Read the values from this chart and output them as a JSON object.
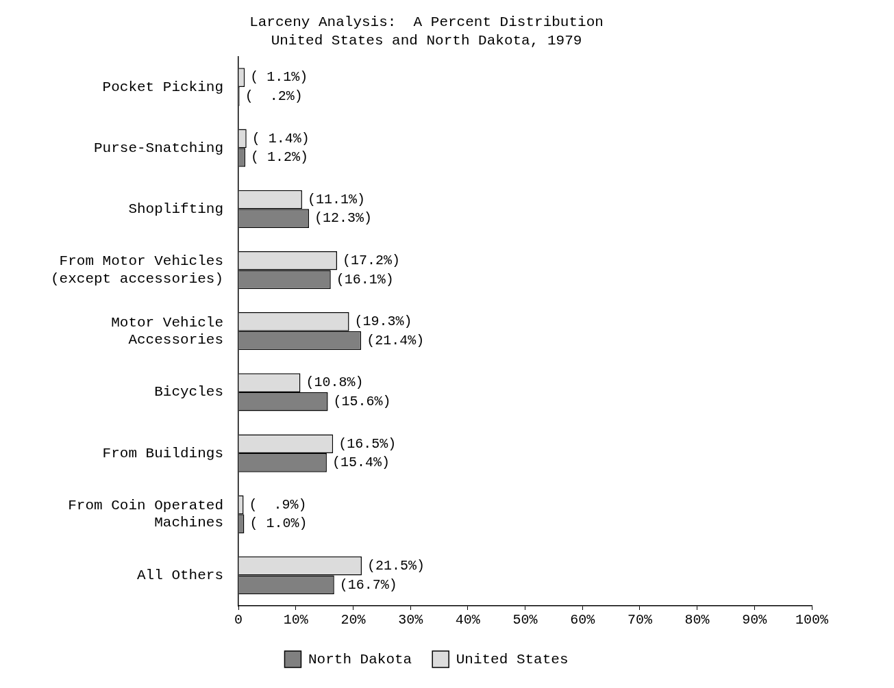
{
  "chart_data": {
    "type": "bar",
    "orientation": "horizontal",
    "title": "Larceny Analysis:  A Percent Distribution",
    "subtitle": "United States and North Dakota, 1979",
    "categories": [
      "Pocket Picking",
      "Purse-Snatching",
      "Shoplifting",
      "From Motor Vehicles\n(except accessories)",
      "Motor Vehicle\nAccessories",
      "Bicycles",
      "From Buildings",
      "From Coin Operated\nMachines",
      "All Others"
    ],
    "series": [
      {
        "name": "United States",
        "color": "#dcdcdc",
        "values": [
          1.1,
          1.4,
          11.1,
          17.2,
          19.3,
          10.8,
          16.5,
          0.9,
          21.5
        ],
        "value_labels": [
          "( 1.1%)",
          "( 1.4%)",
          "(11.1%)",
          "(17.2%)",
          "(19.3%)",
          "(10.8%)",
          "(16.5%)",
          "(  .9%)",
          "(21.5%)"
        ]
      },
      {
        "name": "North Dakota",
        "color": "#808080",
        "values": [
          0.2,
          1.2,
          12.3,
          16.1,
          21.4,
          15.6,
          15.4,
          1.0,
          16.7
        ],
        "value_labels": [
          "(  .2%)",
          "( 1.2%)",
          "(12.3%)",
          "(16.1%)",
          "(21.4%)",
          "(15.6%)",
          "(15.4%)",
          "( 1.0%)",
          "(16.7%)"
        ]
      }
    ],
    "xlim": [
      0,
      100
    ],
    "xticks": [
      0,
      {
        "value": 10,
        "label": "10%"
      },
      {
        "value": 20,
        "label": "20%"
      },
      {
        "value": 30,
        "label": "30%"
      },
      {
        "value": 40,
        "label": "40%"
      },
      {
        "value": 50,
        "label": "50%"
      },
      {
        "value": 60,
        "label": "60%"
      },
      {
        "value": 70,
        "label": "70%"
      },
      {
        "value": 80,
        "label": "80%"
      },
      {
        "value": 90,
        "label": "90%"
      },
      {
        "value": 100,
        "label": "100%"
      }
    ],
    "grid": false,
    "legend": "bottom"
  }
}
